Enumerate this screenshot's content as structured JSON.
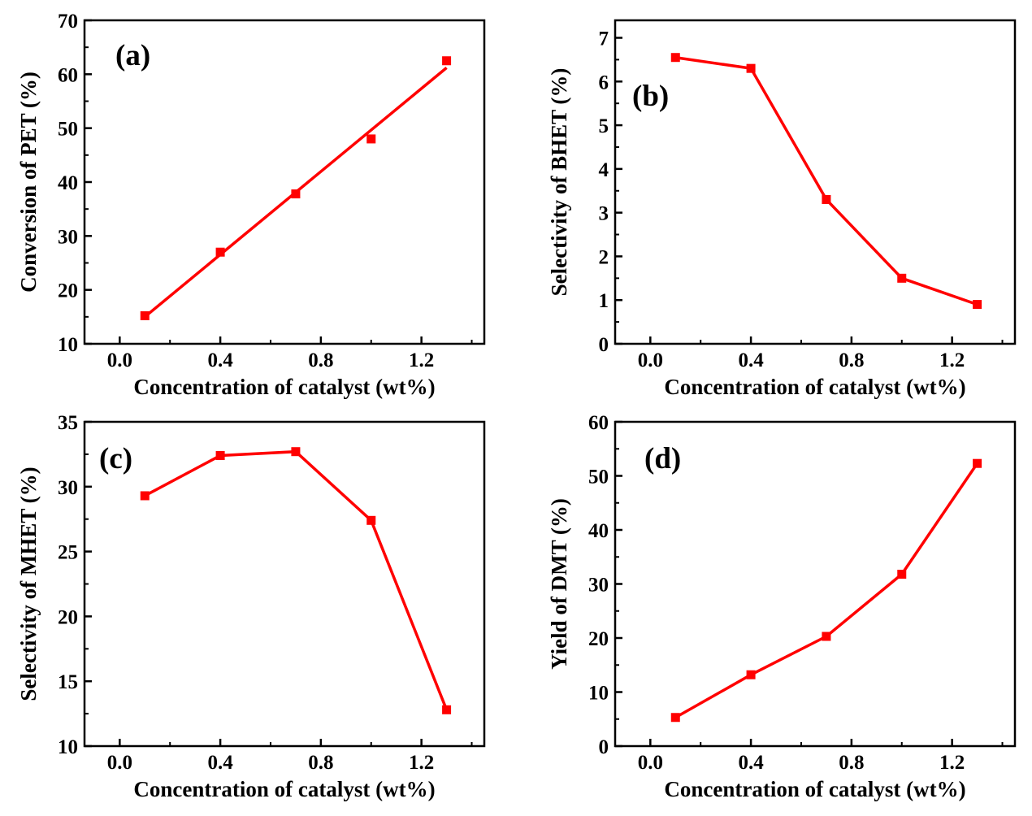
{
  "chart_data": [
    {
      "type": "line",
      "panel_label": "(a)",
      "xlabel": "Concentration of catalyst (wt%)",
      "ylabel": "Conversion of PET (%)",
      "xlim": [
        -0.14,
        1.45
      ],
      "ylim": [
        10,
        70
      ],
      "xticks": [
        "0.0",
        "0.4",
        "0.8",
        "1.2"
      ],
      "yticks": [
        "10",
        "20",
        "30",
        "40",
        "50",
        "60",
        "70"
      ],
      "x": [
        0.1,
        0.4,
        0.7,
        1.0,
        1.3
      ],
      "y": [
        15.2,
        27.0,
        37.8,
        48.0,
        62.5
      ],
      "fit_line": [
        [
          0.1,
          15.0
        ],
        [
          1.3,
          61.2
        ]
      ],
      "color": "#ff0000"
    },
    {
      "type": "line",
      "panel_label": "(b)",
      "xlabel": "Concentration of catalyst (wt%)",
      "ylabel": "Selectivity of BHET (%)",
      "xlim": [
        -0.14,
        1.45
      ],
      "ylim": [
        0,
        7.4
      ],
      "xticks": [
        "0.0",
        "0.4",
        "0.8",
        "1.2"
      ],
      "yticks": [
        "0",
        "1",
        "2",
        "3",
        "4",
        "5",
        "6",
        "7"
      ],
      "x": [
        0.1,
        0.4,
        0.7,
        1.0,
        1.3
      ],
      "y": [
        6.55,
        6.3,
        3.3,
        1.5,
        0.9
      ],
      "color": "#ff0000"
    },
    {
      "type": "line",
      "panel_label": "(c)",
      "xlabel": "Concentration of catalyst (wt%)",
      "ylabel": "Selectivity of MHET (%)",
      "xlim": [
        -0.14,
        1.45
      ],
      "ylim": [
        10,
        35
      ],
      "xticks": [
        "0.0",
        "0.4",
        "0.8",
        "1.2"
      ],
      "yticks": [
        "10",
        "15",
        "20",
        "25",
        "30",
        "35"
      ],
      "x": [
        0.1,
        0.4,
        0.7,
        1.0,
        1.3
      ],
      "y": [
        29.3,
        32.4,
        32.7,
        27.4,
        12.8
      ],
      "color": "#ff0000"
    },
    {
      "type": "line",
      "panel_label": "(d)",
      "xlabel": "Concentration of catalyst (wt%)",
      "ylabel": "Yield of DMT (%)",
      "xlim": [
        -0.14,
        1.45
      ],
      "ylim": [
        0,
        60
      ],
      "xticks": [
        "0.0",
        "0.4",
        "0.8",
        "1.2"
      ],
      "yticks": [
        "0",
        "10",
        "20",
        "30",
        "40",
        "50",
        "60"
      ],
      "x": [
        0.1,
        0.4,
        0.7,
        1.0,
        1.3
      ],
      "y": [
        5.3,
        13.2,
        20.3,
        31.8,
        52.3
      ],
      "color": "#ff0000"
    }
  ]
}
